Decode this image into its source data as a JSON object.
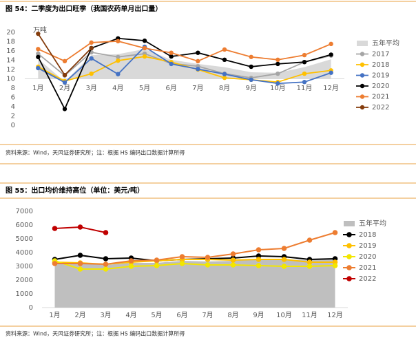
{
  "chart_data": [
    {
      "type": "line",
      "title": "图 54：二季度为出口旺季（我国农药单月出口量）",
      "unit": "万吨",
      "categories": [
        "1月",
        "2月",
        "3月",
        "4月",
        "5月",
        "6月",
        "7月",
        "8月",
        "9月",
        "10月",
        "11月",
        "12月"
      ],
      "ylim": [
        0,
        20
      ],
      "yticks": [
        0,
        2,
        4,
        6,
        8,
        10,
        12,
        14,
        16,
        18,
        20
      ],
      "xaxis_crosses": 10,
      "series": [
        {
          "name": "五年平均",
          "type": "area",
          "color": "#d9d9d9",
          "values": [
            14.3,
            9.4,
            15.1,
            15.3,
            16.4,
            14.1,
            13.2,
            12.5,
            11.4,
            11.3,
            12.5,
            14.2
          ]
        },
        {
          "name": "2017",
          "color": "#a5a5a5",
          "values": [
            15.4,
            10.7,
            15.7,
            14.7,
            15.4,
            13.3,
            12.7,
            11.1,
            10.2,
            11.1,
            13.6,
            15.0
          ]
        },
        {
          "name": "2018",
          "color": "#ffc000",
          "values": [
            12.6,
            9.5,
            11.1,
            13.9,
            14.8,
            13.6,
            12.0,
            10.2,
            9.8,
            9.3,
            11.1,
            11.8
          ]
        },
        {
          "name": "2019",
          "color": "#4472c4",
          "values": [
            12.3,
            9.2,
            14.4,
            11.0,
            16.9,
            13.2,
            12.1,
            11.0,
            9.8,
            9.0,
            9.3,
            11.3
          ]
        },
        {
          "name": "2020",
          "color": "#000000",
          "values": [
            14.7,
            3.5,
            16.6,
            18.7,
            18.2,
            14.8,
            15.6,
            14.1,
            12.6,
            13.2,
            13.6,
            15.2
          ]
        },
        {
          "name": "2021",
          "color": "#ed7d31",
          "values": [
            16.4,
            13.8,
            17.8,
            18.1,
            16.6,
            15.6,
            13.8,
            16.3,
            14.7,
            14.1,
            15.1,
            17.5
          ]
        },
        {
          "name": "2022",
          "color": "#843c0c",
          "values": [
            19.7,
            10.8,
            16.6,
            null,
            null,
            null,
            null,
            null,
            null,
            null,
            null,
            null
          ]
        }
      ],
      "source": "资料来源：Wind，天风证券研究所；注：根据 HS 编码出口数据计算所得"
    },
    {
      "type": "line",
      "title": "图 55：出口均价维持高位（单位：美元/吨）",
      "categories": [
        "1月",
        "2月",
        "3月",
        "4月",
        "5月",
        "6月",
        "7月",
        "8月",
        "9月",
        "10月",
        "11月",
        "12月"
      ],
      "ylim": [
        0,
        7000
      ],
      "yticks": [
        0,
        1000,
        2000,
        3000,
        4000,
        5000,
        6000,
        7000
      ],
      "xaxis_crosses": 0,
      "series": [
        {
          "name": "五年平均",
          "type": "area",
          "color": "#bfbfbf",
          "values": [
            3300,
            3200,
            3100,
            3250,
            3250,
            3400,
            3350,
            3400,
            3500,
            3500,
            3450,
            3550
          ]
        },
        {
          "name": "2018",
          "color": "#000000",
          "values": [
            3500,
            3800,
            3550,
            3600,
            3400,
            3500,
            3550,
            3600,
            3750,
            3700,
            3500,
            3550
          ]
        },
        {
          "name": "2019",
          "color": "#ffc000",
          "values": [
            3300,
            3250,
            3150,
            3300,
            3400,
            3500,
            3500,
            3450,
            3500,
            3500,
            3300,
            3300
          ]
        },
        {
          "name": "2020",
          "color": "#f2e600",
          "values": [
            3400,
            2800,
            2800,
            3000,
            3050,
            3200,
            3100,
            3100,
            3050,
            3000,
            3000,
            3050
          ]
        },
        {
          "name": "2021",
          "color": "#ed7d31",
          "values": [
            3200,
            3200,
            3150,
            3400,
            3450,
            3700,
            3650,
            3900,
            4200,
            4300,
            4900,
            5450
          ]
        },
        {
          "name": "2022",
          "color": "#c00000",
          "values": [
            5750,
            5850,
            5450,
            null,
            null,
            null,
            null,
            null,
            null,
            null,
            null,
            null
          ]
        }
      ],
      "source": "资料来源：Wind，天风证券研究所；注：根据 HS 编码出口数据计算所得"
    }
  ]
}
